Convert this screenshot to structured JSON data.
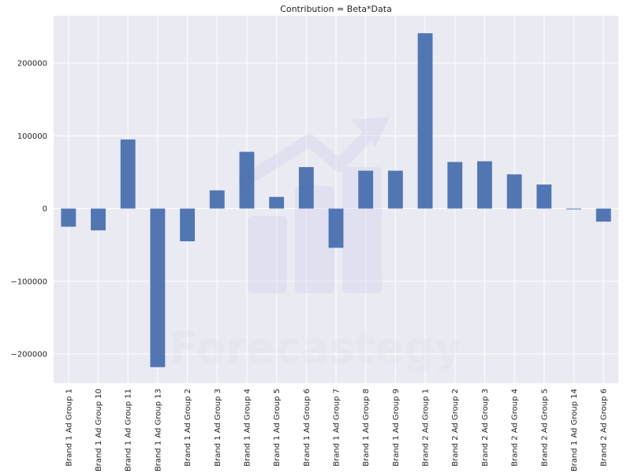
{
  "chart_data": {
    "type": "bar",
    "title": "Contribution = Beta*Data",
    "xlabel": "",
    "ylabel": "",
    "categories": [
      "Brand 1 Ad Group 1",
      "Brand 1 Ad Group 10",
      "Brand 1 Ad Group 11",
      "Brand 1 Ad Group 13",
      "Brand 1 Ad Group 2",
      "Brand 1 Ad Group 3",
      "Brand 1 Ad Group 4",
      "Brand 1 Ad Group 5",
      "Brand 1 Ad Group 6",
      "Brand 1 Ad Group 7",
      "Brand 1 Ad Group 8",
      "Brand 1 Ad Group 9",
      "Brand 2 Ad Group 1",
      "Brand 2 Ad Group 2",
      "Brand 2 Ad Group 3",
      "Brand 2 Ad Group 4",
      "Brand 2 Ad Group 5",
      "Brand 1 Ad Group 14",
      "Brand 2 Ad Group 6"
    ],
    "values": [
      -25000,
      -30000,
      95000,
      -218000,
      -45000,
      25000,
      78000,
      16000,
      57000,
      -54000,
      52000,
      52000,
      241000,
      64000,
      65000,
      47000,
      33000,
      -1000,
      -18000
    ],
    "ylim": [
      -240000,
      265000
    ],
    "yticks": [
      200000,
      100000,
      0,
      -100000,
      -200000
    ],
    "ytick_labels": [
      "200000",
      "100000",
      "0",
      "−100000",
      "−200000"
    ],
    "grid": true,
    "bar_color": "#4c72b0",
    "background_color": "#eaeaf2",
    "grid_color": "#ffffff"
  },
  "watermark": {
    "text": "Forecastegy",
    "color": "#d9d9e8"
  }
}
